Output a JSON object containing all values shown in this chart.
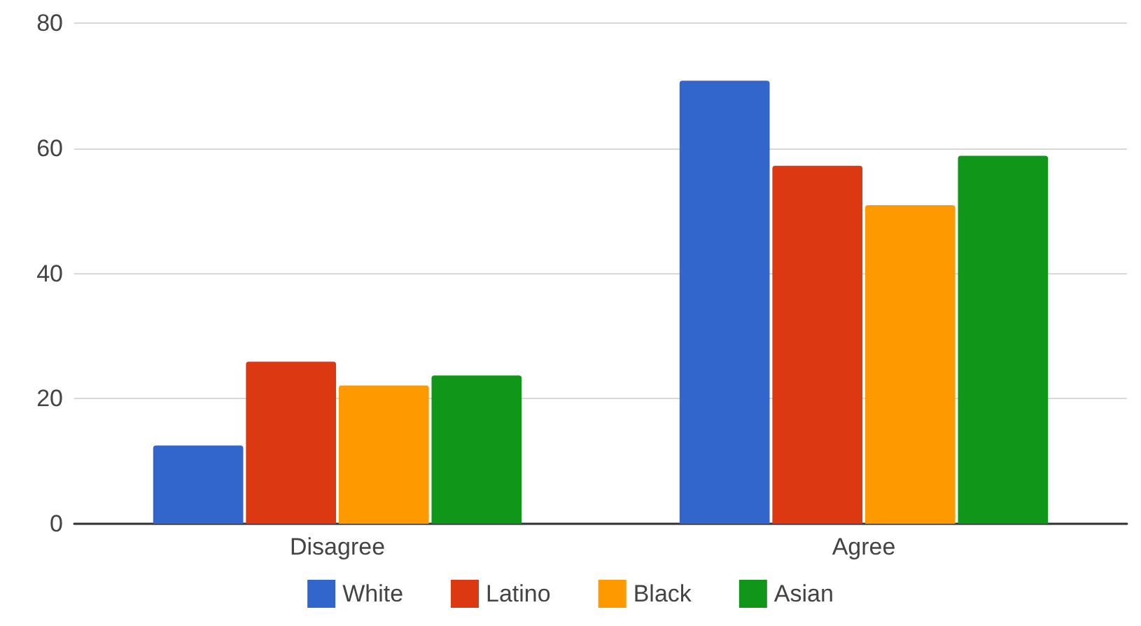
{
  "chart_data": {
    "type": "bar",
    "categories": [
      "Disagree",
      "Agree"
    ],
    "series": [
      {
        "name": "White",
        "color": "#3366cc",
        "values": [
          12.5,
          70.8
        ]
      },
      {
        "name": "Latino",
        "color": "#dc3912",
        "values": [
          25.9,
          57.2
        ]
      },
      {
        "name": "Black",
        "color": "#ff9900",
        "values": [
          22.1,
          50.9
        ]
      },
      {
        "name": "Asian",
        "color": "#109618",
        "values": [
          23.7,
          58.8
        ]
      }
    ],
    "ylim": [
      0,
      80
    ],
    "yticks": [
      0,
      20,
      40,
      60,
      80
    ],
    "grid": "y",
    "legend": "bottom"
  }
}
